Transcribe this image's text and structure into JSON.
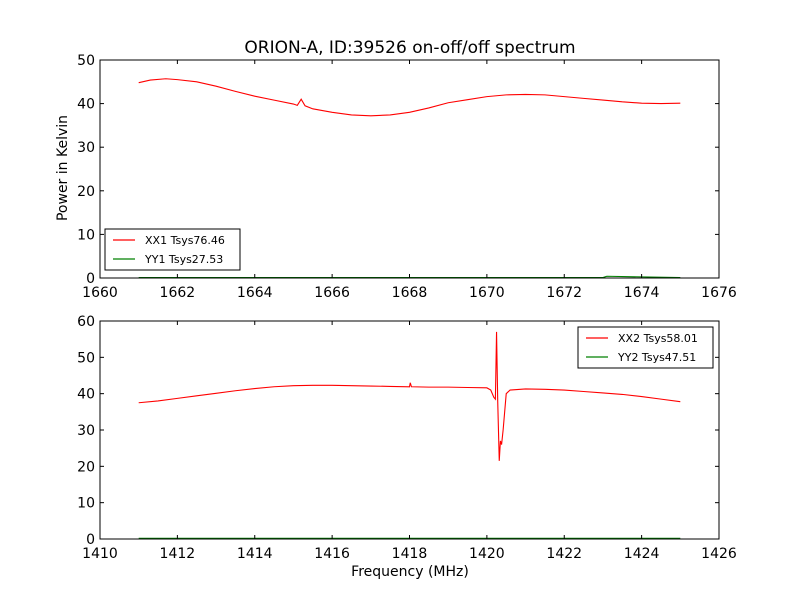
{
  "figure": {
    "title": "ORION-A, ID:39526 on-off/off spectrum",
    "ylabel": "Power in Kelvin",
    "xlabel": "Frequency (MHz)"
  },
  "chart_data": [
    {
      "type": "line",
      "title": "ORION-A, ID:39526 on-off/off spectrum",
      "xlabel": "",
      "ylabel": "Power in Kelvin",
      "xlim": [
        1660,
        1676
      ],
      "ylim": [
        0,
        50
      ],
      "xticks": [
        1660,
        1662,
        1664,
        1666,
        1668,
        1670,
        1672,
        1674,
        1676
      ],
      "yticks": [
        0,
        10,
        20,
        30,
        40,
        50
      ],
      "grid": false,
      "legend_position": "lower-left",
      "series": [
        {
          "name": "XX1 Tsys76.46",
          "color": "#ff0000",
          "x": [
            1661.0,
            1661.3,
            1661.7,
            1662.0,
            1662.5,
            1663.0,
            1663.5,
            1664.0,
            1664.5,
            1665.0,
            1665.1,
            1665.2,
            1665.3,
            1665.5,
            1666.0,
            1666.5,
            1667.0,
            1667.5,
            1668.0,
            1668.5,
            1669.0,
            1669.5,
            1670.0,
            1670.5,
            1671.0,
            1671.5,
            1672.0,
            1672.5,
            1673.0,
            1673.5,
            1674.0,
            1674.5,
            1675.0
          ],
          "y": [
            44.8,
            45.4,
            45.7,
            45.5,
            45.0,
            44.0,
            42.8,
            41.7,
            40.8,
            39.9,
            39.6,
            41.0,
            39.5,
            38.8,
            38.0,
            37.4,
            37.2,
            37.4,
            38.0,
            39.0,
            40.2,
            40.9,
            41.6,
            42.0,
            42.1,
            42.0,
            41.6,
            41.2,
            40.8,
            40.4,
            40.1,
            40.0,
            40.1
          ]
        },
        {
          "name": "YY1 Tsys27.53",
          "color": "#008000",
          "x": [
            1661.0,
            1663.0,
            1665.0,
            1667.0,
            1669.0,
            1671.0,
            1673.0,
            1673.1,
            1675.0
          ],
          "y": [
            0.1,
            0.1,
            0.1,
            0.1,
            0.1,
            0.1,
            0.1,
            0.4,
            0.1
          ]
        }
      ]
    },
    {
      "type": "line",
      "title": "",
      "xlabel": "Frequency (MHz)",
      "ylabel": "",
      "xlim": [
        1410,
        1426
      ],
      "ylim": [
        0,
        60
      ],
      "xticks": [
        1410,
        1412,
        1414,
        1416,
        1418,
        1420,
        1422,
        1424,
        1426
      ],
      "yticks": [
        0,
        10,
        20,
        30,
        40,
        50,
        60
      ],
      "grid": false,
      "legend_position": "upper-right",
      "series": [
        {
          "name": "XX2 Tsys58.01",
          "color": "#ff0000",
          "x": [
            1411.0,
            1411.5,
            1412.0,
            1412.5,
            1413.0,
            1413.5,
            1414.0,
            1414.5,
            1415.0,
            1415.5,
            1416.0,
            1416.5,
            1417.0,
            1417.5,
            1418.0,
            1418.02,
            1418.05,
            1418.5,
            1419.0,
            1419.5,
            1420.0,
            1420.1,
            1420.18,
            1420.22,
            1420.25,
            1420.28,
            1420.32,
            1420.35,
            1420.38,
            1420.42,
            1420.5,
            1420.6,
            1421.0,
            1421.5,
            1422.0,
            1422.5,
            1423.0,
            1423.5,
            1424.0,
            1424.5,
            1425.0
          ],
          "y": [
            37.5,
            38.0,
            38.7,
            39.4,
            40.1,
            40.8,
            41.4,
            41.9,
            42.2,
            42.3,
            42.3,
            42.2,
            42.1,
            42.0,
            41.9,
            43.0,
            41.9,
            41.8,
            41.8,
            41.7,
            41.6,
            41.0,
            39.0,
            38.5,
            57.0,
            38.0,
            21.5,
            27.0,
            26.0,
            30.0,
            40.0,
            41.0,
            41.3,
            41.2,
            41.0,
            40.6,
            40.2,
            39.8,
            39.2,
            38.5,
            37.8
          ]
        },
        {
          "name": "YY2 Tsys47.51",
          "color": "#008000",
          "x": [
            1411.0,
            1415.0,
            1420.0,
            1425.0
          ],
          "y": [
            0.2,
            0.2,
            0.2,
            0.2
          ]
        }
      ]
    }
  ]
}
